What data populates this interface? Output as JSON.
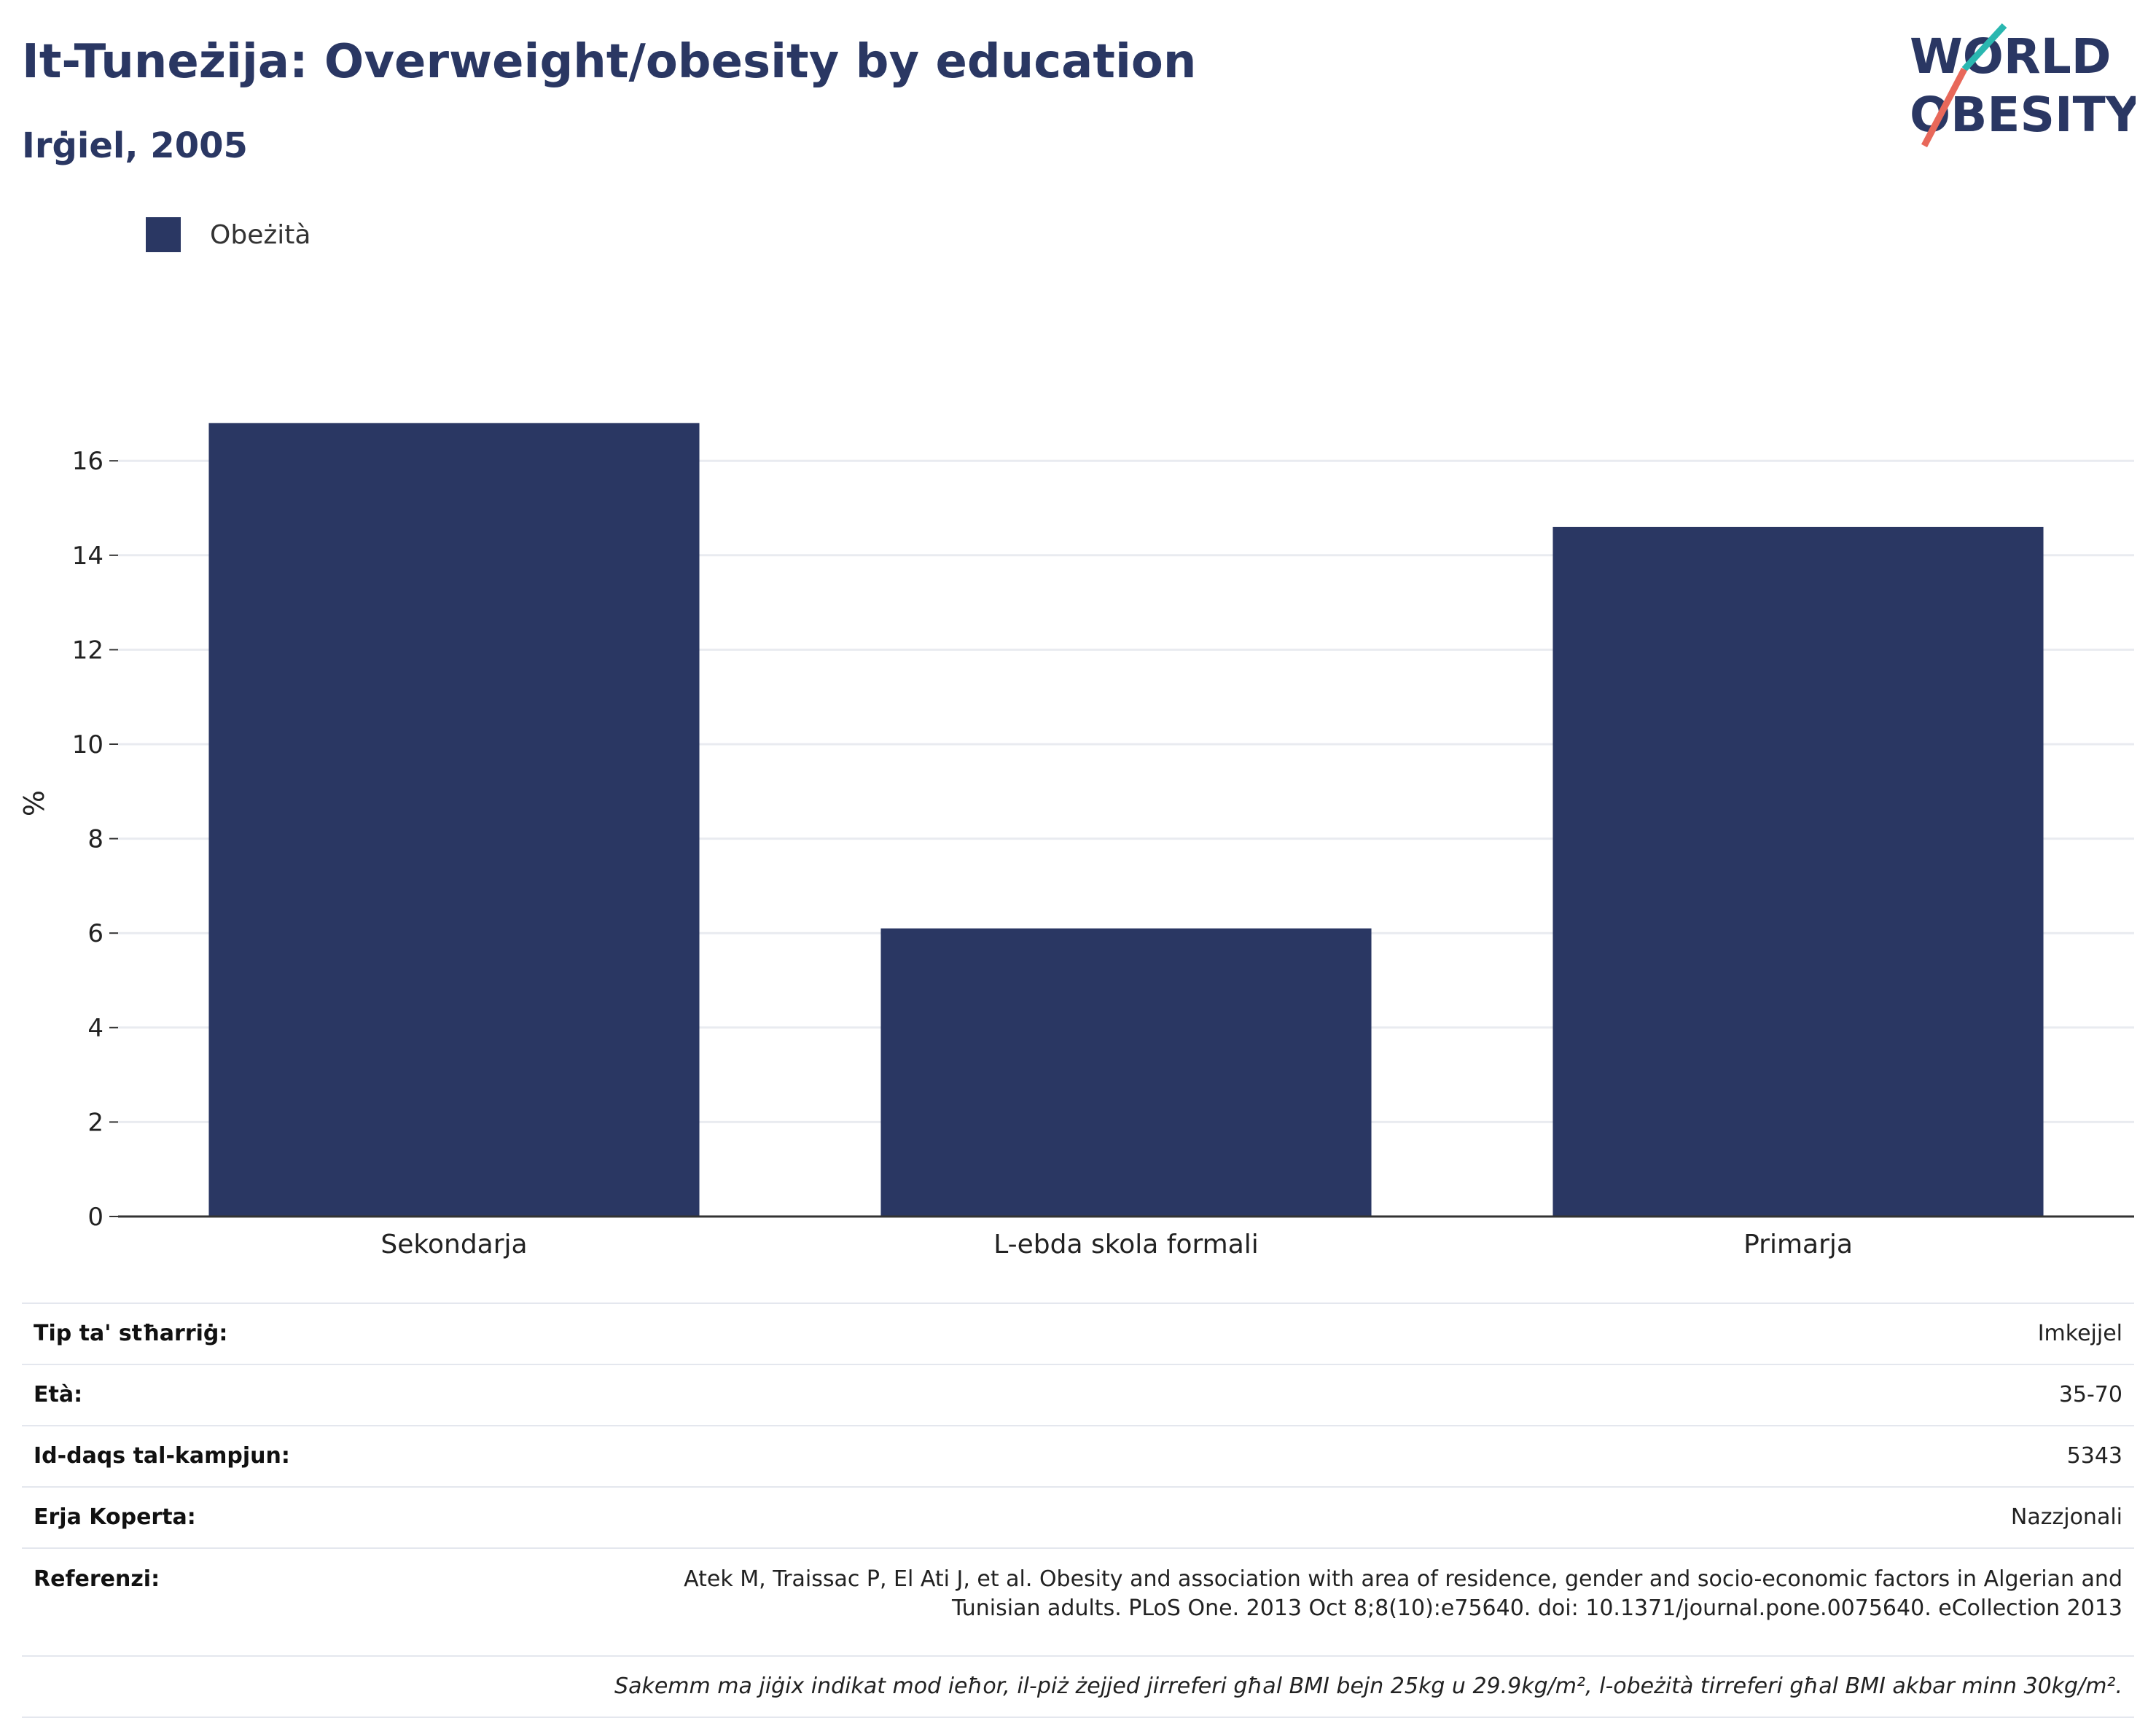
{
  "header": {
    "title": "It-Tuneżija: Overweight/obesity by education",
    "subtitle": "Irġiel, 2005"
  },
  "logo": {
    "line1": "WORLD",
    "line2": "OBESITY"
  },
  "colors": {
    "bar": "#2a3763",
    "title": "#2a3763",
    "grid": "#e9ebf0",
    "axis": "#333333"
  },
  "chart_data": {
    "type": "bar",
    "categories": [
      "Sekondarja",
      "L-ebda skola formali",
      "Primarja"
    ],
    "series": [
      {
        "name": "Obeżità",
        "values": [
          16.8,
          6.1,
          14.6
        ]
      }
    ],
    "ylabel": "%",
    "ylim": [
      0,
      17.5
    ],
    "yticks": [
      0,
      2,
      4,
      6,
      8,
      10,
      12,
      14,
      16
    ],
    "grid": true,
    "legend": "top-left"
  },
  "info": {
    "rows": [
      {
        "key": "Tip ta' stħarriġ:",
        "value": "Imkejjel"
      },
      {
        "key": "Età:",
        "value": "35-70"
      },
      {
        "key": "Id-daqs tal-kampjun:",
        "value": "5343"
      },
      {
        "key": "Erja Koperta:",
        "value": "Nazzjonali"
      }
    ],
    "reference_key": "Referenzi:",
    "reference_line1": "Atek M, Traissac P, El Ati J, et al. Obesity and association with area of residence, gender and socio-economic factors in Algerian and",
    "reference_line2": "Tunisian adults. PLoS One. 2013 Oct 8;8(10):e75640. doi: 10.1371/journal.pone.0075640. eCollection 2013",
    "note": "Sakemm ma jiġix indikat mod ieħor, il-piż żejjed jirreferi għal BMI bejn 25kg u 29.9kg/m², l-obeżità tirreferi għal BMI akbar minn 30kg/m²."
  }
}
